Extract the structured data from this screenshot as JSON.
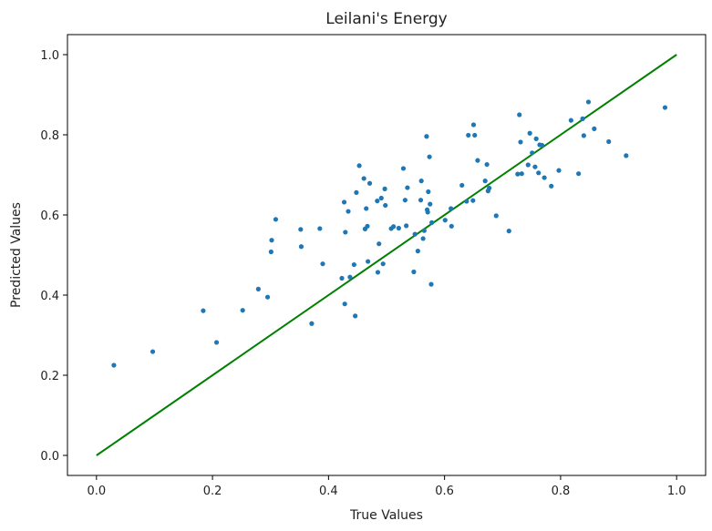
{
  "chart_data": {
    "type": "scatter",
    "title": "Leilani's Energy",
    "xlabel": "True Values",
    "ylabel": "Predicted Values",
    "xlim": [
      -0.05,
      1.05
    ],
    "ylim": [
      -0.05,
      1.05
    ],
    "xticks": [
      0.0,
      0.2,
      0.4,
      0.6,
      0.8,
      1.0
    ],
    "yticks": [
      0.0,
      0.2,
      0.4,
      0.6,
      0.8,
      1.0
    ],
    "xtick_labels": [
      "0.0",
      "0.2",
      "0.4",
      "0.6",
      "0.8",
      "1.0"
    ],
    "ytick_labels": [
      "0.0",
      "0.2",
      "0.4",
      "0.6",
      "0.8",
      "1.0"
    ],
    "grid": false,
    "point_color": "#1f77b4",
    "line_color": "#008000",
    "reference_line": {
      "x": [
        0.0,
        1.0
      ],
      "y": [
        0.0,
        1.0
      ]
    },
    "points": [
      [
        0.03,
        0.225
      ],
      [
        0.097,
        0.259
      ],
      [
        0.184,
        0.361
      ],
      [
        0.207,
        0.282
      ],
      [
        0.252,
        0.362
      ],
      [
        0.279,
        0.415
      ],
      [
        0.295,
        0.395
      ],
      [
        0.301,
        0.508
      ],
      [
        0.302,
        0.537
      ],
      [
        0.309,
        0.589
      ],
      [
        0.352,
        0.564
      ],
      [
        0.353,
        0.521
      ],
      [
        0.371,
        0.329
      ],
      [
        0.385,
        0.566
      ],
      [
        0.39,
        0.478
      ],
      [
        0.423,
        0.442
      ],
      [
        0.427,
        0.632
      ],
      [
        0.428,
        0.378
      ],
      [
        0.429,
        0.557
      ],
      [
        0.434,
        0.609
      ],
      [
        0.437,
        0.445
      ],
      [
        0.444,
        0.476
      ],
      [
        0.446,
        0.348
      ],
      [
        0.448,
        0.656
      ],
      [
        0.453,
        0.723
      ],
      [
        0.461,
        0.691
      ],
      [
        0.463,
        0.565
      ],
      [
        0.465,
        0.616
      ],
      [
        0.467,
        0.572
      ],
      [
        0.468,
        0.484
      ],
      [
        0.471,
        0.679
      ],
      [
        0.484,
        0.635
      ],
      [
        0.485,
        0.457
      ],
      [
        0.487,
        0.528
      ],
      [
        0.491,
        0.642
      ],
      [
        0.494,
        0.478
      ],
      [
        0.497,
        0.665
      ],
      [
        0.498,
        0.624
      ],
      [
        0.508,
        0.566
      ],
      [
        0.512,
        0.571
      ],
      [
        0.521,
        0.567
      ],
      [
        0.529,
        0.716
      ],
      [
        0.532,
        0.637
      ],
      [
        0.534,
        0.573
      ],
      [
        0.536,
        0.668
      ],
      [
        0.547,
        0.458
      ],
      [
        0.549,
        0.552
      ],
      [
        0.554,
        0.51
      ],
      [
        0.559,
        0.637
      ],
      [
        0.56,
        0.685
      ],
      [
        0.563,
        0.541
      ],
      [
        0.565,
        0.561
      ],
      [
        0.569,
        0.796
      ],
      [
        0.57,
        0.613
      ],
      [
        0.571,
        0.607
      ],
      [
        0.572,
        0.658
      ],
      [
        0.574,
        0.745
      ],
      [
        0.575,
        0.627
      ],
      [
        0.577,
        0.427
      ],
      [
        0.578,
        0.581
      ],
      [
        0.601,
        0.587
      ],
      [
        0.611,
        0.616
      ],
      [
        0.612,
        0.572
      ],
      [
        0.63,
        0.674
      ],
      [
        0.638,
        0.634
      ],
      [
        0.641,
        0.799
      ],
      [
        0.649,
        0.636
      ],
      [
        0.65,
        0.825
      ],
      [
        0.652,
        0.799
      ],
      [
        0.657,
        0.736
      ],
      [
        0.67,
        0.685
      ],
      [
        0.673,
        0.726
      ],
      [
        0.675,
        0.66
      ],
      [
        0.677,
        0.667
      ],
      [
        0.689,
        0.598
      ],
      [
        0.711,
        0.56
      ],
      [
        0.726,
        0.702
      ],
      [
        0.729,
        0.85
      ],
      [
        0.731,
        0.782
      ],
      [
        0.733,
        0.703
      ],
      [
        0.744,
        0.725
      ],
      [
        0.747,
        0.804
      ],
      [
        0.751,
        0.755
      ],
      [
        0.756,
        0.72
      ],
      [
        0.758,
        0.79
      ],
      [
        0.762,
        0.705
      ],
      [
        0.764,
        0.775
      ],
      [
        0.768,
        0.774
      ],
      [
        0.772,
        0.693
      ],
      [
        0.784,
        0.672
      ],
      [
        0.797,
        0.711
      ],
      [
        0.818,
        0.836
      ],
      [
        0.831,
        0.703
      ],
      [
        0.838,
        0.84
      ],
      [
        0.84,
        0.798
      ],
      [
        0.848,
        0.882
      ],
      [
        0.858,
        0.815
      ],
      [
        0.883,
        0.783
      ],
      [
        0.913,
        0.748
      ],
      [
        0.98,
        0.868
      ]
    ]
  }
}
